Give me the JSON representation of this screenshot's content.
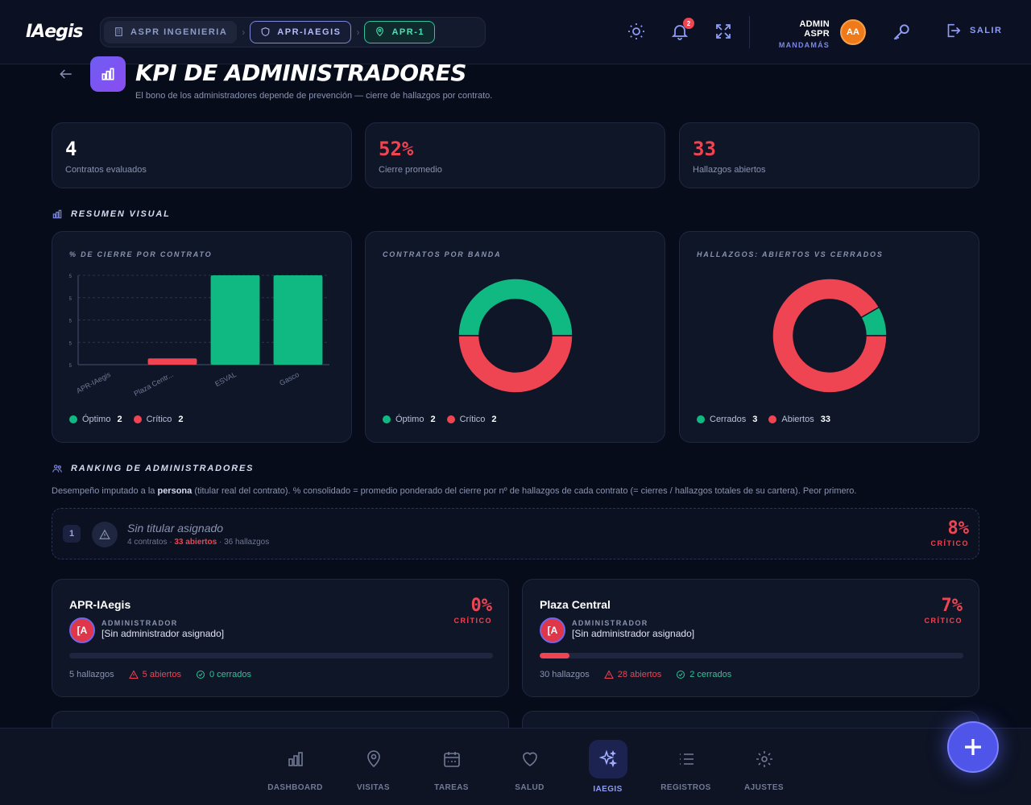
{
  "header": {
    "logo": "IAegis",
    "crumbs": [
      "ASPR INGENIERIA",
      "APR-IAEGIS",
      "APR-1"
    ],
    "notif_count": "2",
    "user_name": "ADMIN ASPR",
    "user_role": "MANDAMÁS",
    "avatar_initials": "AA",
    "logout_label": "SALIR"
  },
  "page": {
    "title": "KPI DE ADMINISTRADORES",
    "subtitle": "El bono de los administradores depende de prevención — cierre de hallazgos por contrato."
  },
  "stats": [
    {
      "value": "4",
      "label": "Contratos evaluados",
      "tone": "white"
    },
    {
      "value": "52%",
      "label": "Cierre promedio",
      "tone": "red"
    },
    {
      "value": "33",
      "label": "Hallazgos abiertos",
      "tone": "red"
    }
  ],
  "sections": {
    "visual": "RESUMEN VISUAL",
    "ranking": "RANKING DE ADMINISTRADORES"
  },
  "colors": {
    "green": "#10b981",
    "red": "#ef4452",
    "accent": "#8e9cf5"
  },
  "chart_data": [
    {
      "type": "bar",
      "title": "% DE CIERRE POR CONTRATO",
      "categories": [
        "APR-IAegis",
        "Plaza Centr...",
        "ESVAL",
        "Gasco"
      ],
      "values": [
        0,
        7,
        100,
        100
      ],
      "bar_colors": [
        "#ef4452",
        "#ef4452",
        "#10b981",
        "#10b981"
      ],
      "ylim": [
        0,
        100
      ],
      "y_tick_label": "5",
      "legend": [
        {
          "name": "Óptimo",
          "value": "2",
          "color": "#10b981"
        },
        {
          "name": "Crítico",
          "value": "2",
          "color": "#ef4452"
        }
      ]
    },
    {
      "type": "pie",
      "title": "CONTRATOS POR BANDA",
      "slices": [
        {
          "name": "Óptimo",
          "value": 2,
          "color": "#10b981"
        },
        {
          "name": "Crítico",
          "value": 2,
          "color": "#ef4452"
        }
      ],
      "legend": [
        {
          "name": "Óptimo",
          "value": "2",
          "color": "#10b981"
        },
        {
          "name": "Crítico",
          "value": "2",
          "color": "#ef4452"
        }
      ]
    },
    {
      "type": "pie",
      "title": "HALLAZGOS: ABIERTOS VS CERRADOS",
      "slices": [
        {
          "name": "Cerrados",
          "value": 3,
          "color": "#10b981"
        },
        {
          "name": "Abiertos",
          "value": 33,
          "color": "#ef4452"
        }
      ],
      "legend": [
        {
          "name": "Cerrados",
          "value": "3",
          "color": "#10b981"
        },
        {
          "name": "Abiertos",
          "value": "33",
          "color": "#ef4452"
        }
      ]
    }
  ],
  "ranking": {
    "desc_pre": "Desempeño imputado a la ",
    "desc_bold": "persona",
    "desc_post": " (titular real del contrato). % consolidado = promedio ponderado del cierre por nº de hallazgos de cada contrato (= cierres / hallazgos totales de su cartera). Peor primero.",
    "unassigned": {
      "rank": "1",
      "name": "Sin titular asignado",
      "contracts": "4 contratos",
      "open": "33 abiertos",
      "total": "36 hallazgos",
      "pct": "8%",
      "status": "CRÍTICO"
    },
    "cards": [
      {
        "name": "APR-IAegis",
        "avatar": "[A",
        "role": "ADMINISTRADOR",
        "admin": "[Sin administrador asignado]",
        "pct": "0%",
        "status": "CRÍTICO",
        "progress": 0,
        "total": "5 hallazgos",
        "open": "5 abiertos",
        "closed": "0 cerrados"
      },
      {
        "name": "Plaza Central",
        "avatar": "[A",
        "role": "ADMINISTRADOR",
        "admin": "[Sin administrador asignado]",
        "pct": "7%",
        "status": "CRÍTICO",
        "progress": 7,
        "total": "30 hallazgos",
        "open": "28 abiertos",
        "closed": "2 cerrados"
      }
    ]
  },
  "nav": {
    "items": [
      {
        "label": "DASHBOARD",
        "icon": "bar-chart-icon"
      },
      {
        "label": "VISITAS",
        "icon": "map-pin-icon"
      },
      {
        "label": "TAREAS",
        "icon": "calendar-icon"
      },
      {
        "label": "SALUD",
        "icon": "heart-icon"
      },
      {
        "label": "IAEGIS",
        "icon": "sparkles-icon",
        "active": true
      },
      {
        "label": "REGISTROS",
        "icon": "list-icon"
      },
      {
        "label": "AJUSTES",
        "icon": "settings-icon"
      }
    ]
  }
}
